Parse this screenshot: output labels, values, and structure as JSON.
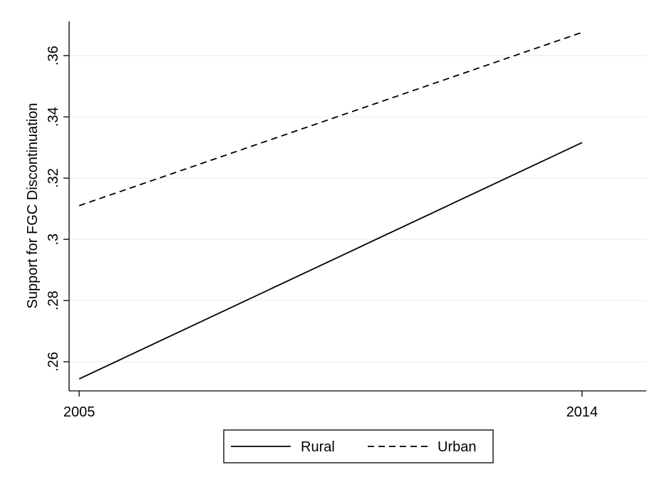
{
  "chart_data": {
    "type": "line",
    "title": "",
    "xlabel": "",
    "ylabel": "Support for FGC Discontinuation",
    "x": [
      2005,
      2014
    ],
    "x_tick_values": [
      2005,
      2014
    ],
    "x_tick_labels": [
      "2005",
      "2014"
    ],
    "xlim": [
      2004.82,
      2015.15
    ],
    "y_tick_values": [
      0.26,
      0.28,
      0.3,
      0.32,
      0.34,
      0.36
    ],
    "y_tick_labels": [
      ".26",
      ".28",
      ".3",
      ".32",
      ".34",
      ".36"
    ],
    "ylim": [
      0.2505,
      0.3712
    ],
    "grid": true,
    "legend_position": "bottom",
    "series": [
      {
        "name": "Rural",
        "values": [
          0.2544,
          0.3316
        ],
        "line_style": "solid"
      },
      {
        "name": "Urban",
        "values": [
          0.311,
          0.3676
        ],
        "line_style": "dashed"
      }
    ],
    "colors": {
      "line": "#000000",
      "grid": "#eaf2f3",
      "axis": "#000000"
    }
  }
}
